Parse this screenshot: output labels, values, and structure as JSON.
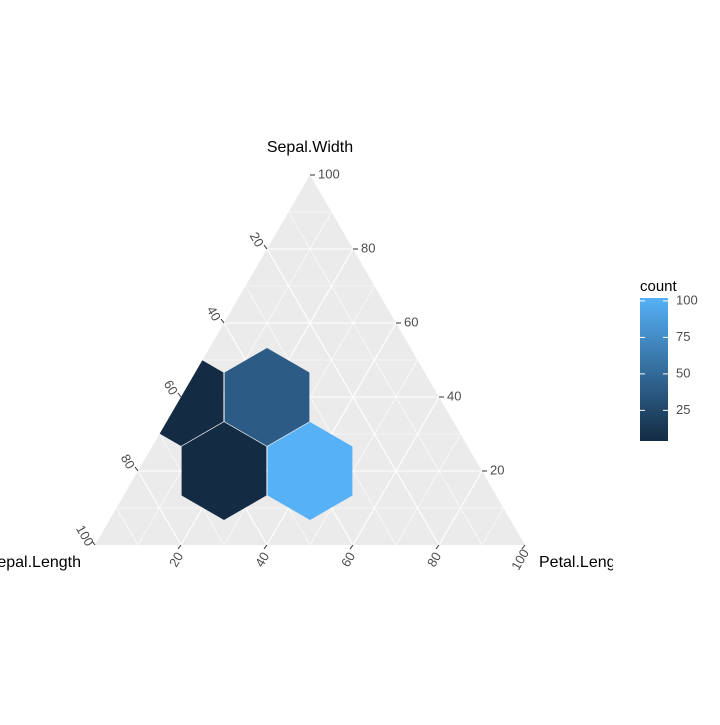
{
  "chart_data": {
    "type": "ternary-hexbin",
    "axes": {
      "top": {
        "title": "Sepal.Width",
        "lim": [
          0,
          100
        ],
        "ticks": [
          20,
          40,
          60,
          80,
          100
        ]
      },
      "left": {
        "title": "Sepal.Length",
        "lim": [
          0,
          100
        ],
        "ticks": [
          20,
          40,
          60,
          80,
          100
        ]
      },
      "right": {
        "title": "Petal.Length",
        "lim": [
          0,
          100
        ],
        "ticks": [
          20,
          40,
          60,
          80,
          100
        ]
      }
    },
    "centers": [
      [
        40,
        0,
        60
      ],
      [
        40,
        20,
        40
      ],
      [
        20,
        20,
        60
      ],
      [
        20,
        40,
        40
      ]
    ],
    "values": [
      4,
      40,
      4,
      102
    ],
    "grid": true,
    "legend": {
      "title": "count",
      "ticks": [
        25,
        50,
        75,
        100
      ],
      "colors": [
        "#132B43",
        "#56B1F7"
      ]
    }
  }
}
